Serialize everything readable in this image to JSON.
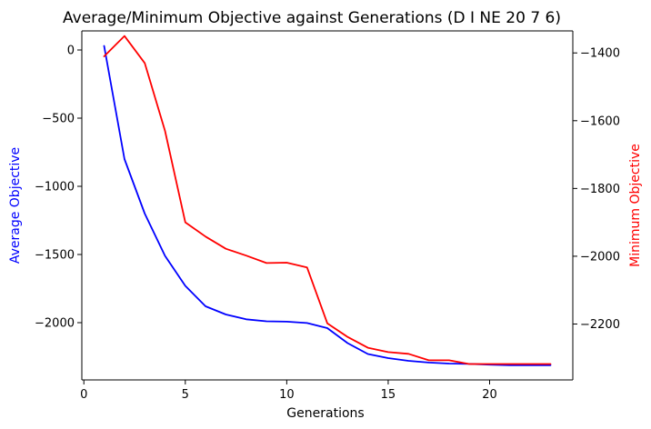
{
  "chart_data": {
    "type": "line",
    "title": "Average/Minimum Objective against Generations (D I NE 20 7 6)",
    "xlabel": "Generations",
    "ylabel_left": "Average Objective",
    "ylabel_right": "Minimum Objective",
    "x": [
      1,
      2,
      3,
      4,
      5,
      6,
      7,
      8,
      9,
      10,
      11,
      12,
      13,
      14,
      15,
      16,
      17,
      18,
      19,
      20,
      21,
      22,
      23
    ],
    "xlim": [
      -0.1,
      24.1
    ],
    "xticks": [
      0,
      5,
      10,
      15,
      20
    ],
    "grid": false,
    "series": [
      {
        "name": "Average Objective",
        "axis": "left",
        "color": "#0000ff",
        "values": [
          30,
          -800,
          -1200,
          -1510,
          -1730,
          -1880,
          -1940,
          -1975,
          -1990,
          -1993,
          -2003,
          -2040,
          -2150,
          -2230,
          -2260,
          -2280,
          -2293,
          -2300,
          -2303,
          -2308,
          -2312,
          -2313,
          -2313
        ]
      },
      {
        "name": "Minimum Objective",
        "axis": "right",
        "color": "#ff0000",
        "values": [
          -1410,
          -1350,
          -1430,
          -1630,
          -1900,
          -1942,
          -1978,
          -1998,
          -2020,
          -2019,
          -2033,
          -2198,
          -2238,
          -2270,
          -2283,
          -2288,
          -2307,
          -2307,
          -2318,
          -2318,
          -2318,
          -2318,
          -2318
        ]
      }
    ],
    "ylim_left": [
      -2420,
      140
    ],
    "yticks_left": [
      0,
      -500,
      -1000,
      -1500,
      -2000
    ],
    "ylim_right": [
      -2365,
      -1335
    ],
    "yticks_right": [
      -1400,
      -1600,
      -1800,
      -2000,
      -2200
    ]
  }
}
